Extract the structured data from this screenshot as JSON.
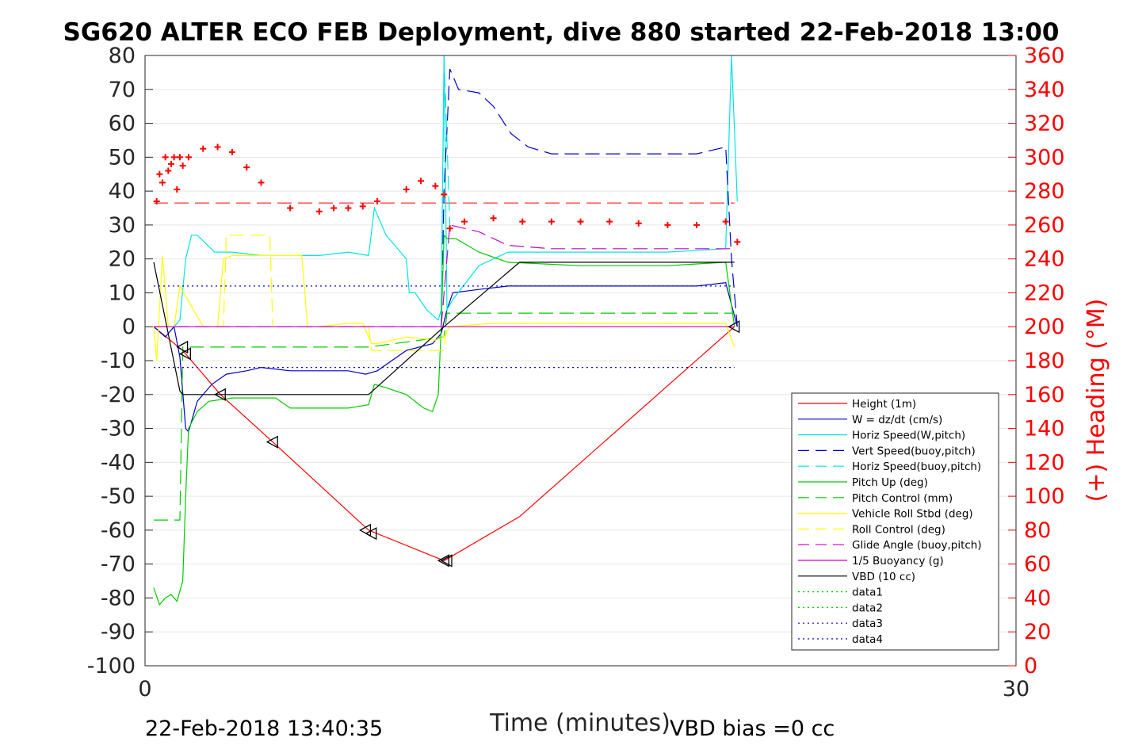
{
  "chart_data": {
    "type": "line",
    "title": "SG620 ALTER ECO FEB Deployment, dive 880 started 22-Feb-2018 13:00",
    "xlabel": "Time (minutes)",
    "ylabel_right": "(+) Heading (°M)",
    "xlim": [
      0,
      30
    ],
    "ylim": [
      -100,
      80
    ],
    "ylim_right": [
      0,
      360
    ],
    "x_ticks": [
      0,
      30
    ],
    "y_ticks": [
      80,
      70,
      60,
      50,
      40,
      30,
      20,
      10,
      0,
      -10,
      -20,
      -30,
      -40,
      -50,
      -60,
      -70,
      -80,
      -90,
      -100
    ],
    "y_ticks_right": [
      360,
      340,
      320,
      300,
      280,
      260,
      240,
      220,
      200,
      180,
      160,
      140,
      120,
      100,
      80,
      60,
      40,
      20,
      0
    ],
    "grid": "horizontal",
    "legend_position": "bottom-right",
    "footer_left": "22-Feb-2018 13:40:35",
    "footer_right": "VBD bias =0 cc",
    "colors": {
      "red": "#ff0000",
      "blue": "#0000cc",
      "cyan": "#00e5e5",
      "green": "#00cc00",
      "yellow": "#ffff00",
      "magenta": "#cc00cc",
      "black": "#000000"
    },
    "series": [
      {
        "name": "Height (1m)",
        "color": "#ff0000",
        "style": "solid",
        "x": [
          0.3,
          1.3,
          2.6,
          4.4,
          7.7,
          10.3,
          12.9,
          20.3
        ],
        "y": [
          0,
          -7,
          -20,
          -34,
          -60,
          -69,
          -56,
          0
        ]
      },
      {
        "name": "W = dz/dt (cm/s)",
        "color": "#0000cc",
        "style": "solid",
        "x": [
          0.3,
          0.7,
          1.0,
          1.2,
          1.4,
          1.5,
          1.8,
          2.3,
          2.8,
          3.5,
          4.0,
          5.0,
          6.0,
          7.0,
          7.6,
          8.0,
          9.0,
          9.9,
          10.2,
          10.4,
          10.6,
          11.5,
          12.5,
          15.0,
          17.0,
          18.0,
          19.0,
          20.0,
          20.4
        ],
        "y": [
          0,
          -3,
          0,
          -9,
          -30,
          -31,
          -22,
          -17,
          -14,
          -13,
          -12,
          -13,
          -13,
          -13,
          -14,
          -13,
          -7,
          -5,
          -2,
          5,
          10,
          11,
          12,
          12,
          12,
          12,
          12,
          13,
          0
        ]
      },
      {
        "name": "Horiz Speed(W,pitch)",
        "color": "#00e5e5",
        "style": "solid",
        "x": [
          1.0,
          1.2,
          1.4,
          1.6,
          1.8,
          2.4,
          3.0,
          4.0,
          5.0,
          6.0,
          7.0,
          7.7,
          7.9,
          8.3,
          9.0,
          9.1,
          9.3,
          9.7,
          10.1,
          10.2,
          10.3,
          10.4,
          10.6,
          11.5,
          12.5,
          15.0,
          18.0,
          20.0,
          20.2,
          20.4
        ],
        "y": [
          0,
          2,
          20,
          27,
          27,
          22,
          22,
          21,
          21,
          21,
          22,
          21,
          35,
          27,
          20,
          10,
          10,
          5,
          2,
          5,
          80,
          5,
          8,
          18,
          22,
          22,
          22,
          23,
          80,
          37
        ]
      },
      {
        "name": "Vert Speed(buoy,pitch)",
        "color": "#0000cc",
        "style": "dashed",
        "x": [
          10.2,
          10.3,
          10.5,
          10.8,
          11.5,
          12.0,
          12.6,
          13.2,
          14.0,
          16.0,
          18.0,
          19.0,
          20.0,
          20.2,
          20.4
        ],
        "y": [
          0,
          40,
          76,
          70,
          69,
          65,
          57,
          53,
          51,
          51,
          51,
          51,
          53,
          20,
          0
        ]
      },
      {
        "name": "Horiz Speed(buoy,pitch)",
        "color": "#00e5e5",
        "style": "dashed",
        "x": [
          10.2,
          10.3,
          10.5
        ],
        "y": [
          0,
          80,
          30
        ]
      },
      {
        "name": "Pitch Up (deg)",
        "color": "#00cc00",
        "style": "solid",
        "x": [
          0.3,
          0.5,
          0.7,
          0.9,
          1.1,
          1.3,
          1.4,
          1.5,
          1.8,
          2.2,
          3.0,
          4.0,
          4.5,
          5.0,
          6.0,
          7.0,
          7.7,
          7.9,
          8.3,
          9.0,
          9.6,
          9.9,
          10.1,
          10.2,
          10.3,
          10.4,
          10.7,
          11.5,
          12.5,
          15.0,
          18.0,
          20.0,
          20.3
        ],
        "y": [
          -77,
          -82,
          -80,
          -79,
          -81,
          -75,
          -50,
          -30,
          -25,
          -22,
          -21,
          -21,
          -21,
          -24,
          -24,
          -24,
          -23,
          -17,
          -18,
          -20,
          -24,
          -25,
          -20,
          0,
          27,
          26,
          26,
          22,
          19,
          18,
          18,
          19,
          0
        ]
      },
      {
        "name": "Pitch Control (mm)",
        "color": "#00cc00",
        "style": "dashed",
        "x": [
          0.3,
          1.2,
          1.3,
          1.5,
          7.7,
          10.3,
          10.4,
          20.3
        ],
        "y": [
          -57,
          -57,
          -6,
          -6,
          -6,
          -3,
          4,
          4
        ]
      },
      {
        "name": "Vehicle Roll Stbd (deg)",
        "color": "#ffff00",
        "style": "solid",
        "x": [
          0.3,
          0.4,
          0.6,
          0.8,
          1.0,
          1.2,
          2.0,
          2.5,
          2.7,
          3.0,
          4.0,
          5.0,
          5.4,
          5.6,
          6.0,
          7.0,
          7.5,
          7.8,
          8.0,
          9.0,
          10.0,
          10.3,
          10.5,
          12.0,
          15.0,
          18.0,
          20.0,
          20.3
        ],
        "y": [
          0,
          -10,
          21,
          0,
          0,
          12,
          0,
          0,
          20,
          21,
          21,
          21,
          21,
          0,
          0,
          1,
          1,
          -5,
          -5,
          -3,
          -4,
          -3,
          0,
          1,
          1,
          1,
          1,
          -6
        ]
      },
      {
        "name": "Roll Control (deg)",
        "color": "#ffff00",
        "style": "dashed",
        "x": [
          0.3,
          2.7,
          2.8,
          4.3,
          4.4,
          7.7,
          7.8,
          10.3,
          10.4,
          20.3
        ],
        "y": [
          0,
          0,
          27,
          27,
          0,
          0,
          -7,
          -7,
          0,
          0
        ]
      },
      {
        "name": "Glide Angle (buoy,pitch)",
        "color": "#cc00cc",
        "style": "dashed",
        "x": [
          0.3,
          10.2,
          10.5,
          11.5,
          12.5,
          14.0,
          20.3
        ],
        "y": [
          0,
          0,
          30,
          28,
          24,
          23,
          23
        ]
      },
      {
        "name": "1/5 Buoyancy (g)",
        "color": "#cc00cc",
        "style": "solid",
        "x": [
          0.3,
          20.3
        ],
        "y": [
          0,
          0
        ]
      },
      {
        "name": "VBD (10 cc)",
        "color": "#000000",
        "style": "solid",
        "x": [
          0.3,
          1.2,
          1.3,
          7.7,
          10.3,
          12.9,
          20.3
        ],
        "y": [
          19,
          -19,
          -20,
          -20,
          0,
          19,
          19
        ]
      },
      {
        "name": "data1",
        "color": "#00cc00",
        "style": "dotted",
        "x": [],
        "y": []
      },
      {
        "name": "data2",
        "color": "#00cc00",
        "style": "dotted",
        "x": [],
        "y": []
      },
      {
        "name": "data3",
        "color": "#0000cc",
        "style": "dotted",
        "x": [
          0.3,
          20.3
        ],
        "y": [
          12,
          12
        ]
      },
      {
        "name": "data4",
        "color": "#0000cc",
        "style": "dotted",
        "x": [
          0.3,
          20.3
        ],
        "y": [
          -12,
          -12
        ]
      }
    ],
    "heading_markers": {
      "color": "#ff0000",
      "marker": "+",
      "x": [
        0.4,
        0.5,
        0.6,
        0.7,
        0.8,
        0.9,
        1.0,
        1.1,
        1.2,
        1.3,
        1.5,
        2.0,
        2.5,
        3.0,
        3.5,
        4.0,
        5.0,
        6.0,
        6.5,
        7.0,
        7.5,
        8.0,
        9.0,
        9.5,
        10.0,
        10.3,
        10.5,
        11.0,
        12.0,
        13.0,
        14.0,
        15.0,
        16.0,
        17.0,
        18.0,
        19.0,
        20.0,
        20.4
      ],
      "heading": [
        274,
        290,
        285,
        300,
        292,
        296,
        300,
        281,
        300,
        295,
        300,
        305,
        306,
        303,
        294,
        285,
        270,
        268,
        270,
        270,
        271,
        274,
        281,
        286,
        283,
        278,
        258,
        262,
        264,
        262,
        262,
        262,
        262,
        261,
        260,
        260,
        262,
        250
      ]
    },
    "heading_reference": {
      "color": "#ff0000",
      "style": "dashed",
      "heading": 273
    },
    "triangle_markers": {
      "x": [
        1.3,
        1.4,
        2.6,
        4.4,
        7.6,
        7.8,
        10.3,
        10.4,
        20.3
      ],
      "y": [
        -6,
        -8,
        -20,
        -34,
        -60,
        -61,
        -69,
        -69,
        0
      ]
    }
  }
}
